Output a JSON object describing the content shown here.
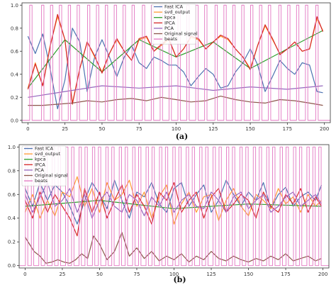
{
  "chart_data": [
    {
      "type": "line",
      "caption": "(a)",
      "xlim": [
        -4,
        204
      ],
      "ylim": [
        -0.02,
        1.02
      ],
      "x_ticks": [
        0,
        25,
        50,
        75,
        100,
        125,
        150,
        175,
        200
      ],
      "y_ticks": [
        0.0,
        0.2,
        0.4,
        0.6,
        0.8,
        1.0
      ],
      "y_tick_labels": [
        "0.0",
        "0.2",
        "0.4",
        "0.6",
        "0.8",
        "1.0"
      ],
      "legend_position": "top-center",
      "grid": false,
      "series": [
        {
          "name": "Fast ICA",
          "color": "#4c72b0",
          "x": [
            0,
            5,
            10,
            15,
            20,
            25,
            30,
            35,
            40,
            45,
            50,
            55,
            60,
            65,
            70,
            75,
            80,
            85,
            90,
            95,
            100,
            105,
            110,
            115,
            120,
            125,
            130,
            135,
            140,
            145,
            150,
            155,
            160,
            165,
            170,
            175,
            180,
            185,
            190,
            195,
            199
          ],
          "y": [
            0.73,
            0.58,
            0.75,
            0.45,
            0.1,
            0.35,
            0.8,
            0.68,
            0.25,
            0.55,
            0.7,
            0.55,
            0.38,
            0.55,
            0.65,
            0.5,
            0.45,
            0.55,
            0.52,
            0.48,
            0.48,
            0.42,
            0.3,
            0.38,
            0.45,
            0.4,
            0.28,
            0.3,
            0.42,
            0.5,
            0.62,
            0.48,
            0.25,
            0.38,
            0.52,
            0.45,
            0.4,
            0.5,
            0.48,
            0.25,
            0.24
          ]
        },
        {
          "name": "svd_output",
          "color": "#ff9c33",
          "x": [
            0,
            5,
            10,
            15,
            20,
            25,
            30,
            35,
            40,
            45,
            50,
            55,
            60,
            65,
            70,
            75,
            80,
            85,
            90,
            95,
            100,
            105,
            110,
            115,
            120,
            125,
            130,
            135,
            140,
            145,
            150,
            155,
            160,
            165,
            170,
            175,
            180,
            185,
            190,
            195,
            199
          ],
          "y": [
            0.28,
            0.5,
            0.3,
            0.65,
            0.9,
            0.7,
            0.15,
            0.45,
            0.68,
            0.55,
            0.42,
            0.58,
            0.7,
            0.6,
            0.52,
            0.7,
            0.72,
            0.6,
            0.65,
            0.7,
            0.55,
            0.62,
            0.72,
            0.7,
            0.62,
            0.68,
            0.73,
            0.7,
            0.62,
            0.55,
            0.45,
            0.65,
            0.82,
            0.7,
            0.58,
            0.62,
            0.68,
            0.6,
            0.62,
            0.88,
            0.78
          ]
        },
        {
          "name": "kpca",
          "color": "#2ca02c",
          "x": [
            0,
            25,
            50,
            75,
            100,
            125,
            150,
            175,
            199
          ],
          "y": [
            0.28,
            0.7,
            0.42,
            0.7,
            0.55,
            0.68,
            0.45,
            0.62,
            0.78
          ]
        },
        {
          "name": "IPCA",
          "color": "#d62728",
          "x": [
            0,
            5,
            10,
            15,
            20,
            25,
            30,
            35,
            40,
            45,
            50,
            55,
            60,
            65,
            70,
            75,
            80,
            85,
            90,
            95,
            100,
            105,
            110,
            115,
            120,
            125,
            130,
            135,
            140,
            145,
            150,
            155,
            160,
            165,
            170,
            175,
            180,
            185,
            190,
            195,
            199
          ],
          "y": [
            0.27,
            0.49,
            0.3,
            0.64,
            0.92,
            0.7,
            0.14,
            0.45,
            0.68,
            0.56,
            0.41,
            0.58,
            0.71,
            0.6,
            0.52,
            0.71,
            0.73,
            0.6,
            0.66,
            0.71,
            0.55,
            0.62,
            0.73,
            0.71,
            0.62,
            0.68,
            0.74,
            0.71,
            0.62,
            0.55,
            0.44,
            0.65,
            0.83,
            0.71,
            0.57,
            0.62,
            0.68,
            0.6,
            0.62,
            0.9,
            0.77
          ]
        },
        {
          "name": "PCA",
          "color": "#9467bd",
          "x": [
            0,
            25,
            50,
            75,
            100,
            125,
            150,
            175,
            199
          ],
          "y": [
            0.2,
            0.25,
            0.3,
            0.28,
            0.3,
            0.26,
            0.29,
            0.27,
            0.3
          ]
        },
        {
          "name": "Original signal",
          "color": "#8c564b",
          "x": [
            0,
            10,
            20,
            30,
            40,
            50,
            60,
            70,
            80,
            90,
            100,
            110,
            120,
            130,
            140,
            150,
            160,
            170,
            180,
            190,
            199
          ],
          "y": [
            0.13,
            0.13,
            0.14,
            0.15,
            0.17,
            0.16,
            0.18,
            0.19,
            0.17,
            0.2,
            0.18,
            0.16,
            0.17,
            0.21,
            0.18,
            0.16,
            0.15,
            0.18,
            0.17,
            0.15,
            0.13
          ]
        },
        {
          "name": "beats",
          "color": "#e377c2",
          "pulses": [
            2,
            10,
            16,
            22,
            28,
            34,
            41,
            47,
            53,
            59,
            65,
            71,
            78,
            84,
            90,
            96,
            102,
            108,
            114,
            120,
            127,
            133,
            139,
            145,
            151,
            157,
            163,
            170,
            176,
            182,
            188,
            195
          ],
          "low": 0.0,
          "high": 1.0
        }
      ]
    },
    {
      "type": "line",
      "caption": "(b)",
      "xlim": [
        -4,
        204
      ],
      "ylim": [
        -0.02,
        1.02
      ],
      "x_ticks": [
        0,
        25,
        50,
        75,
        100,
        125,
        150,
        175,
        200
      ],
      "y_ticks": [
        0.0,
        0.2,
        0.4,
        0.6,
        0.8,
        1.0
      ],
      "y_tick_labels": [
        "0.0",
        "0.2",
        "0.4",
        "0.6",
        "0.8",
        "1.0"
      ],
      "legend_position": "top-left",
      "grid": false,
      "series": [
        {
          "name": "Fast ICA",
          "color": "#4c72b0",
          "x": [
            0,
            5,
            10,
            15,
            20,
            25,
            30,
            35,
            40,
            45,
            50,
            55,
            60,
            65,
            70,
            75,
            80,
            85,
            90,
            95,
            100,
            105,
            110,
            115,
            120,
            125,
            130,
            135,
            140,
            145,
            150,
            155,
            160,
            165,
            170,
            175,
            180,
            185,
            190,
            195,
            199
          ],
          "y": [
            0.65,
            0.5,
            0.7,
            0.55,
            0.68,
            0.62,
            0.5,
            0.35,
            0.55,
            0.7,
            0.6,
            0.48,
            0.72,
            0.55,
            0.4,
            0.62,
            0.58,
            0.7,
            0.52,
            0.45,
            0.65,
            0.7,
            0.5,
            0.6,
            0.68,
            0.45,
            0.55,
            0.72,
            0.6,
            0.5,
            0.62,
            0.55,
            0.7,
            0.48,
            0.6,
            0.66,
            0.5,
            0.58,
            0.62,
            0.55,
            0.68
          ]
        },
        {
          "name": "svd_output",
          "color": "#ff9c33",
          "x": [
            0,
            5,
            10,
            15,
            20,
            25,
            30,
            35,
            40,
            45,
            50,
            55,
            60,
            65,
            70,
            75,
            80,
            85,
            90,
            95,
            100,
            105,
            110,
            115,
            120,
            125,
            130,
            135,
            140,
            145,
            150,
            155,
            160,
            165,
            170,
            175,
            180,
            185,
            190,
            195,
            199
          ],
          "y": [
            0.45,
            0.6,
            0.4,
            0.55,
            0.42,
            0.62,
            0.58,
            0.75,
            0.5,
            0.65,
            0.45,
            0.7,
            0.55,
            0.6,
            0.72,
            0.5,
            0.62,
            0.4,
            0.58,
            0.68,
            0.35,
            0.52,
            0.62,
            0.45,
            0.58,
            0.6,
            0.38,
            0.55,
            0.65,
            0.5,
            0.42,
            0.6,
            0.55,
            0.48,
            0.65,
            0.52,
            0.58,
            0.45,
            0.6,
            0.5,
            0.55
          ]
        },
        {
          "name": "kpca",
          "color": "#2ca02c",
          "x": [
            0,
            50,
            100,
            150,
            199
          ],
          "y": [
            0.5,
            0.55,
            0.48,
            0.52,
            0.5
          ]
        },
        {
          "name": "IPCA",
          "color": "#d62728",
          "x": [
            0,
            5,
            10,
            15,
            20,
            25,
            30,
            35,
            40,
            45,
            50,
            55,
            60,
            65,
            70,
            75,
            80,
            85,
            90,
            95,
            100,
            105,
            110,
            115,
            120,
            125,
            130,
            135,
            140,
            145,
            150,
            155,
            160,
            165,
            170,
            175,
            180,
            185,
            190,
            195,
            199
          ],
          "y": [
            0.55,
            0.4,
            0.62,
            0.45,
            0.6,
            0.5,
            0.4,
            0.25,
            0.65,
            0.45,
            0.62,
            0.4,
            0.55,
            0.68,
            0.45,
            0.6,
            0.5,
            0.35,
            0.62,
            0.55,
            0.7,
            0.45,
            0.55,
            0.62,
            0.4,
            0.58,
            0.65,
            0.45,
            0.52,
            0.6,
            0.55,
            0.4,
            0.62,
            0.5,
            0.45,
            0.6,
            0.52,
            0.65,
            0.45,
            0.58,
            0.5
          ]
        },
        {
          "name": "PCA",
          "color": "#9467bd",
          "x": [
            0,
            5,
            10,
            15,
            20,
            25,
            30,
            35,
            40,
            45,
            50,
            55,
            60,
            65,
            70,
            75,
            80,
            85,
            90,
            95,
            100,
            105,
            110,
            115,
            120,
            125,
            130,
            135,
            140,
            145,
            150,
            155,
            160,
            165,
            170,
            175,
            180,
            185,
            190,
            195,
            199
          ],
          "y": [
            0.6,
            0.45,
            0.58,
            0.7,
            0.5,
            0.55,
            0.65,
            0.45,
            0.6,
            0.4,
            0.55,
            0.62,
            0.5,
            0.45,
            0.6,
            0.55,
            0.42,
            0.58,
            0.5,
            0.62,
            0.45,
            0.55,
            0.6,
            0.5,
            0.48,
            0.62,
            0.55,
            0.45,
            0.58,
            0.62,
            0.48,
            0.55,
            0.6,
            0.45,
            0.5,
            0.58,
            0.62,
            0.5,
            0.55,
            0.6,
            0.52
          ]
        },
        {
          "name": "Original signal",
          "color": "#8c564b",
          "x": [
            0,
            3,
            6,
            10,
            14,
            18,
            22,
            26,
            30,
            34,
            38,
            42,
            46,
            50,
            55,
            60,
            65,
            70,
            75,
            80,
            85,
            90,
            95,
            100,
            105,
            110,
            115,
            120,
            125,
            130,
            135,
            140,
            145,
            150,
            155,
            160,
            165,
            170,
            175,
            180,
            185,
            190,
            195,
            199
          ],
          "y": [
            0.24,
            0.18,
            0.12,
            0.08,
            0.02,
            0.03,
            0.05,
            0.03,
            0.02,
            0.05,
            0.1,
            0.06,
            0.25,
            0.18,
            0.05,
            0.12,
            0.28,
            0.08,
            0.15,
            0.06,
            0.12,
            0.04,
            0.08,
            0.05,
            0.1,
            0.03,
            0.08,
            0.05,
            0.12,
            0.06,
            0.04,
            0.08,
            0.05,
            0.03,
            0.06,
            0.04,
            0.08,
            0.05,
            0.1,
            0.04,
            0.06,
            0.08,
            0.04,
            0.06
          ]
        },
        {
          "name": "beats",
          "color": "#e377c2",
          "pulses": [
            1,
            5,
            10,
            14,
            19,
            23,
            28,
            32,
            37,
            41,
            46,
            50,
            55,
            59,
            64,
            68,
            73,
            77,
            82,
            86,
            91,
            95,
            100,
            104,
            109,
            113,
            118,
            122,
            127,
            131,
            136,
            140,
            145,
            149,
            154,
            158,
            163,
            167,
            172,
            176,
            181,
            185,
            190,
            194,
            198
          ],
          "low": 0.0,
          "high": 1.0
        }
      ]
    }
  ]
}
